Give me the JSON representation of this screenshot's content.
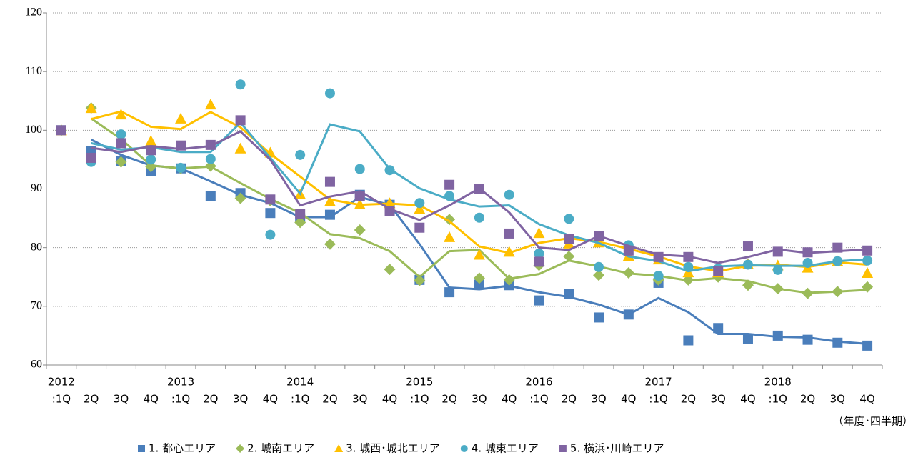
{
  "chart_data": {
    "type": "line",
    "categories": [
      ":1Q",
      "2Q",
      "3Q",
      "4Q",
      ":1Q",
      "2Q",
      "3Q",
      "4Q",
      ":1Q",
      "2Q",
      "3Q",
      "4Q",
      ":1Q",
      "2Q",
      "3Q",
      "4Q",
      ":1Q",
      "2Q",
      "3Q",
      "4Q",
      ":1Q",
      "2Q",
      "3Q",
      "4Q",
      ":1Q",
      "2Q",
      "3Q",
      "4Q"
    ],
    "category_groups": [
      "2012",
      null,
      null,
      null,
      "2013",
      null,
      null,
      null,
      "2014",
      null,
      null,
      null,
      "2015",
      null,
      null,
      null,
      "2016",
      null,
      null,
      null,
      "2017",
      null,
      null,
      null,
      "2018",
      null,
      null,
      null
    ],
    "x_note": "（年度･四半期）",
    "ylim": [
      60,
      120
    ],
    "yticks": [
      60,
      70,
      80,
      90,
      100,
      110,
      120
    ],
    "grid": true,
    "legend": "bottom",
    "series": [
      {
        "name": "1. 都心エリア",
        "color": "#4a7ebb",
        "marker": "square",
        "values": [
          100,
          96.5,
          94.7,
          93.0,
          93.5,
          88.8,
          89.3,
          85.9,
          85.0,
          85.6,
          89.0,
          87.3,
          74.5,
          72.4,
          73.7,
          73.6,
          71.0,
          72.1,
          68.1,
          68.6,
          74.0,
          64.2,
          66.3,
          64.5,
          65.0,
          64.3,
          63.8,
          63.3
        ],
        "trend": [
          null,
          98.4,
          95.8,
          94.0,
          93.5,
          91.3,
          89.0,
          87.6,
          85.2,
          85.2,
          88.6,
          87.3,
          80.6,
          73.2,
          72.9,
          73.5,
          72.4,
          71.6,
          70.3,
          68.6,
          71.4,
          69.0,
          65.3,
          65.3,
          64.8,
          64.7,
          64.0,
          63.6
        ]
      },
      {
        "name": "2. 城南エリア",
        "color": "#9bbb59",
        "marker": "diamond",
        "values": [
          100,
          103.8,
          94.6,
          93.8,
          93.5,
          93.9,
          88.4,
          88.0,
          84.3,
          80.6,
          83.0,
          76.3,
          74.4,
          84.8,
          74.8,
          74.5,
          77.0,
          78.5,
          75.3,
          75.7,
          74.5,
          74.5,
          75.0,
          73.6,
          73.0,
          72.2,
          72.5,
          73.3
        ],
        "trend": [
          null,
          102.0,
          98.5,
          94.0,
          93.5,
          93.8,
          91.0,
          88.3,
          85.9,
          82.3,
          81.6,
          79.4,
          75.0,
          79.4,
          79.6,
          74.7,
          75.5,
          77.8,
          76.8,
          75.6,
          75.2,
          74.4,
          74.8,
          74.3,
          73.0,
          72.3,
          72.5,
          72.8
        ]
      },
      {
        "name": "3. 城西･城北エリア",
        "color": "#ffc000",
        "marker": "triangle",
        "values": [
          100,
          103.8,
          102.7,
          98.2,
          102.0,
          104.4,
          96.9,
          96.2,
          89.1,
          87.9,
          87.4,
          87.6,
          86.6,
          81.8,
          78.8,
          79.3,
          82.5,
          80.7,
          80.9,
          78.6,
          78.0,
          75.8,
          75.8,
          77.2,
          77.0,
          76.6,
          77.7,
          75.7
        ],
        "trend": [
          null,
          101.9,
          103.2,
          100.6,
          100.2,
          103.1,
          100.5,
          96.0,
          92.1,
          88.2,
          87.3,
          87.5,
          87.2,
          84.5,
          80.2,
          79.1,
          80.8,
          81.6,
          81.0,
          79.8,
          78.5,
          76.8,
          76.0,
          76.9,
          77.1,
          76.7,
          77.5,
          77.1
        ]
      },
      {
        "name": "4. 城東エリア",
        "color": "#4bacc6",
        "marker": "circle",
        "values": [
          100,
          94.6,
          99.3,
          95.0,
          93.6,
          95.1,
          107.8,
          82.2,
          95.8,
          106.3,
          93.4,
          93.2,
          87.6,
          88.8,
          85.1,
          89.0,
          79.0,
          84.9,
          76.7,
          80.4,
          75.2,
          76.7,
          76.4,
          77.1,
          76.2,
          77.4,
          77.7,
          77.8
        ],
        "trend": [
          null,
          97.8,
          96.7,
          97.1,
          96.3,
          96.3,
          101.3,
          95.3,
          89.2,
          101.0,
          99.8,
          93.4,
          90.1,
          88.2,
          87.0,
          87.2,
          84.0,
          82.1,
          80.8,
          78.5,
          77.7,
          76.0,
          76.8,
          77.0,
          76.9,
          76.9,
          77.7,
          78.0
        ]
      },
      {
        "name": "5. 横浜･川崎エリア",
        "color": "#8064a2",
        "marker": "square",
        "values": [
          100,
          95.3,
          97.8,
          96.6,
          97.4,
          97.5,
          101.7,
          88.2,
          85.8,
          91.2,
          88.8,
          86.2,
          83.4,
          90.7,
          90.0,
          82.4,
          77.6,
          81.5,
          82.0,
          79.5,
          78.4,
          78.4,
          76.0,
          80.2,
          79.3,
          79.2,
          80.0,
          79.5
        ],
        "trend": [
          null,
          97.0,
          96.3,
          97.3,
          96.8,
          97.3,
          99.8,
          95.0,
          87.2,
          88.7,
          89.6,
          86.6,
          84.7,
          87.2,
          90.1,
          86.0,
          80.0,
          79.6,
          82.0,
          80.3,
          78.8,
          78.5,
          77.4,
          78.4,
          79.7,
          79.1,
          79.4,
          79.7
        ]
      }
    ]
  }
}
